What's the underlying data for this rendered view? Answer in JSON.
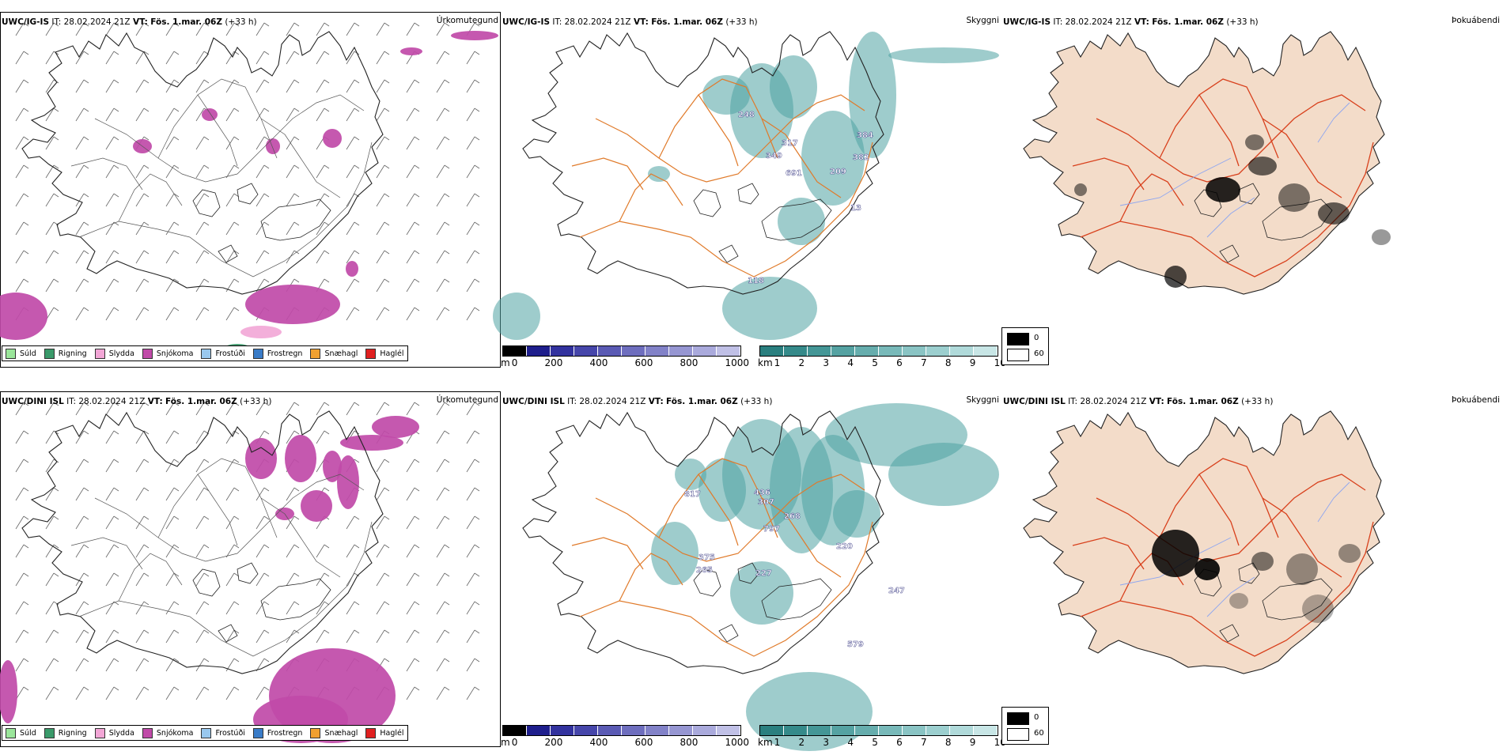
{
  "panels": [
    {
      "model": "UWC/IG-IS",
      "it_label": "IT:",
      "it_value": "28.02.2024 21Z",
      "vt_label": "VT:",
      "vt_value": "Fös. 1.mar. 06Z",
      "lead": "(+33 h)",
      "product": "Úrkomutegund"
    },
    {
      "model": "UWC/IG-IS",
      "it_label": "IT:",
      "it_value": "28.02.2024 21Z",
      "vt_label": "VT:",
      "vt_value": "Fös. 1.mar. 06Z",
      "lead": "(+33 h)",
      "product": "Skyggni",
      "numbers": [
        "248",
        "317",
        "349",
        "384",
        "382",
        "209",
        "118",
        "13",
        "691"
      ]
    },
    {
      "model": "UWC/IG-IS",
      "it_label": "IT:",
      "it_value": "28.02.2024 21Z",
      "vt_label": "VT:",
      "vt_value": "Fös. 1.mar. 06Z",
      "lead": "(+33 h)",
      "product": "Þokuábendi"
    },
    {
      "model": "UWC/DINI ISL",
      "it_label": "IT:",
      "it_value": "28.02.2024 21Z",
      "vt_label": "VT:",
      "vt_value": "Fös. 1.mar. 06Z",
      "lead": "(+33 h)",
      "product": "Úrkomutegund"
    },
    {
      "model": "UWC/DINI ISL",
      "it_label": "IT:",
      "it_value": "28.02.2024 21Z",
      "vt_label": "VT:",
      "vt_value": "Fös. 1.mar. 06Z",
      "lead": "(+33 h)",
      "product": "Skyggni",
      "numbers": [
        "817",
        "436",
        "307",
        "268",
        "797",
        "220",
        "375",
        "265",
        "227",
        "247",
        "579"
      ]
    },
    {
      "model": "UWC/DINI ISL",
      "it_label": "IT:",
      "it_value": "28.02.2024 21Z",
      "vt_label": "VT:",
      "vt_value": "Fös. 1.mar. 06Z",
      "lead": "(+33 h)",
      "product": "Þokuábendi"
    }
  ],
  "precip_legend": [
    {
      "label": "Súld",
      "color": "#9be69b"
    },
    {
      "label": "Rigning",
      "color": "#3a9a6a"
    },
    {
      "label": "Slydda",
      "color": "#f2a6d6"
    },
    {
      "label": "Snjókoma",
      "color": "#c04aa8"
    },
    {
      "label": "Frostúði",
      "color": "#99c8ee"
    },
    {
      "label": "Frostregn",
      "color": "#3a7cc8"
    },
    {
      "label": "Snæhagl",
      "color": "#f0a030"
    },
    {
      "label": "Haglél",
      "color": "#e02020"
    }
  ],
  "height_bar": {
    "unit": "m",
    "ticks": [
      "0",
      "200",
      "400",
      "600",
      "800",
      "1000"
    ],
    "colors": [
      "#000000",
      "#1e1e8c",
      "#32329e",
      "#4646aa",
      "#5a5ab4",
      "#6e6ebe",
      "#8282c8",
      "#9696d2",
      "#aaaadc",
      "#c0c0e6"
    ]
  },
  "vis_bar": {
    "unit": "km",
    "ticks": [
      "1",
      "2",
      "3",
      "4",
      "5",
      "6",
      "7",
      "8",
      "9",
      "10"
    ],
    "colors": [
      "#2a7f7f",
      "#358a8a",
      "#449696",
      "#55a2a2",
      "#66adad",
      "#78b9b9",
      "#8ac4c4",
      "#9ccfcf",
      "#b0dada",
      "#c8e6e6"
    ]
  },
  "fog_legend": [
    {
      "value": "0",
      "color": "#000000"
    },
    {
      "value": "60",
      "color": "#ffffff"
    }
  ],
  "colors": {
    "coast": "#000000",
    "roads_orange": "#e07a2a",
    "roads_red": "#d8401c",
    "fog_land": "#f3dcc9",
    "rivers": "#8ea6f0",
    "snow": "#c04aa8",
    "vis": "#4fa3a3"
  }
}
